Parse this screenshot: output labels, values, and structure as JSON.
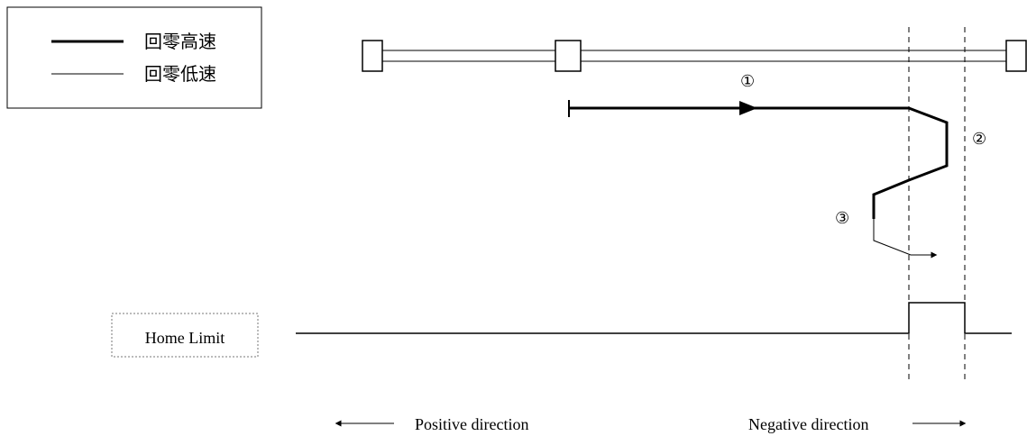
{
  "legend": {
    "high_speed_label": "回零高速",
    "low_speed_label": "回零低速"
  },
  "steps": {
    "step_1": "①",
    "step_2": "②",
    "step_3": "③"
  },
  "signal": {
    "label": "Home Limit"
  },
  "directions": {
    "positive": "Positive direction",
    "negative": "Negative direction"
  },
  "colors": {
    "line": "#000000",
    "background": "#ffffff"
  }
}
